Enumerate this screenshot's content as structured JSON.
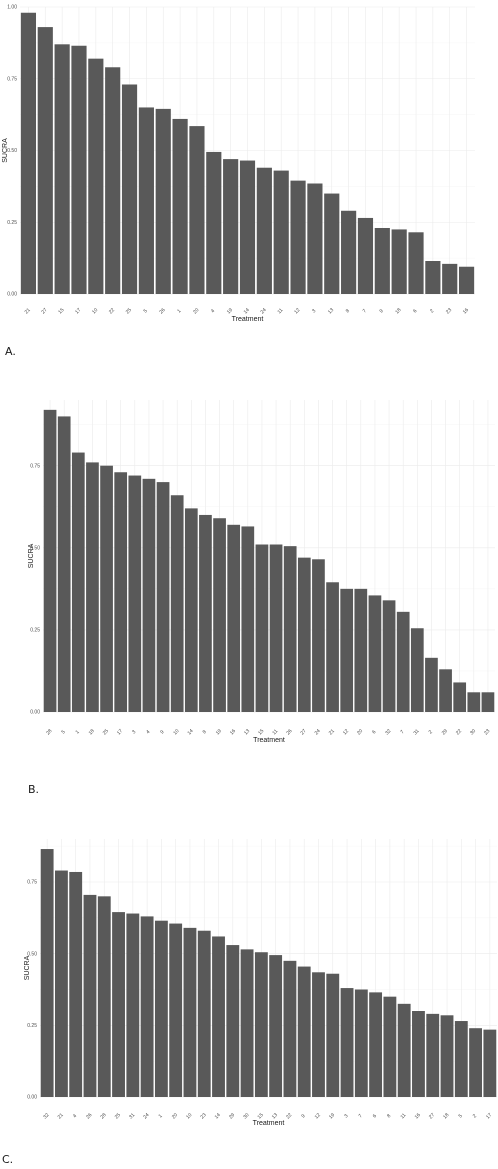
{
  "colors": {
    "bar": "#595959",
    "grid_major": "#ebebeb",
    "grid_minor": "#f4f4f4",
    "text": "#4d4d4d"
  },
  "chart_data": [
    {
      "type": "bar",
      "panel_label": "A.",
      "xlabel": "Treatment",
      "ylabel": "SUCRA",
      "ylim": [
        0,
        1
      ],
      "yticks": [
        0,
        0.25,
        0.5,
        0.75,
        1
      ],
      "ytick_labels": [
        "0.00",
        "0.25",
        "0.50",
        "0.75",
        "1.00"
      ],
      "grid": true,
      "categories": [
        "21",
        "27",
        "15",
        "17",
        "10",
        "22",
        "25",
        "5",
        "26",
        "1",
        "20",
        "4",
        "19",
        "14",
        "24",
        "11",
        "12",
        "3",
        "13",
        "8",
        "7",
        "9",
        "18",
        "6",
        "2",
        "23",
        "16"
      ],
      "values": [
        0.98,
        0.93,
        0.87,
        0.865,
        0.82,
        0.79,
        0.73,
        0.65,
        0.645,
        0.61,
        0.585,
        0.495,
        0.47,
        0.465,
        0.44,
        0.43,
        0.395,
        0.385,
        0.35,
        0.29,
        0.265,
        0.23,
        0.225,
        0.215,
        0.115,
        0.105,
        0.095
      ]
    },
    {
      "type": "bar",
      "panel_label": "B.",
      "xlabel": "Treatment",
      "ylabel": "SUCRA",
      "ylim": [
        0,
        0.95
      ],
      "yticks": [
        0,
        0.25,
        0.5,
        0.75
      ],
      "ytick_labels": [
        "0.00",
        "0.25",
        "0.50",
        "0.75"
      ],
      "grid": true,
      "categories": [
        "28",
        "5",
        "1",
        "18",
        "25",
        "17",
        "3",
        "4",
        "9",
        "10",
        "14",
        "8",
        "19",
        "16",
        "13",
        "15",
        "11",
        "26",
        "27",
        "24",
        "21",
        "12",
        "20",
        "6",
        "32",
        "7",
        "31",
        "2",
        "29",
        "22",
        "30",
        "23"
      ],
      "values": [
        0.92,
        0.9,
        0.79,
        0.76,
        0.75,
        0.73,
        0.72,
        0.71,
        0.7,
        0.66,
        0.62,
        0.6,
        0.59,
        0.57,
        0.565,
        0.51,
        0.51,
        0.505,
        0.47,
        0.465,
        0.395,
        0.375,
        0.375,
        0.355,
        0.34,
        0.305,
        0.255,
        0.165,
        0.13,
        0.09,
        0.06,
        0.06
      ]
    },
    {
      "type": "bar",
      "panel_label": "C.",
      "xlabel": "Treatment",
      "ylabel": "SUCRA",
      "ylim": [
        0,
        0.9
      ],
      "yticks": [
        0,
        0.25,
        0.5,
        0.75
      ],
      "ytick_labels": [
        "0.00",
        "0.25",
        "0.50",
        "0.75"
      ],
      "grid": true,
      "categories": [
        "32",
        "21",
        "4",
        "26",
        "28",
        "25",
        "31",
        "24",
        "1",
        "20",
        "10",
        "23",
        "14",
        "29",
        "30",
        "15",
        "13",
        "22",
        "9",
        "12",
        "19",
        "3",
        "7",
        "6",
        "8",
        "11",
        "16",
        "27",
        "18",
        "5",
        "2",
        "17"
      ],
      "values": [
        0.865,
        0.79,
        0.785,
        0.705,
        0.7,
        0.645,
        0.64,
        0.63,
        0.615,
        0.605,
        0.59,
        0.58,
        0.56,
        0.53,
        0.515,
        0.505,
        0.495,
        0.475,
        0.455,
        0.435,
        0.43,
        0.38,
        0.375,
        0.365,
        0.35,
        0.325,
        0.3,
        0.29,
        0.285,
        0.265,
        0.24,
        0.235
      ]
    }
  ]
}
